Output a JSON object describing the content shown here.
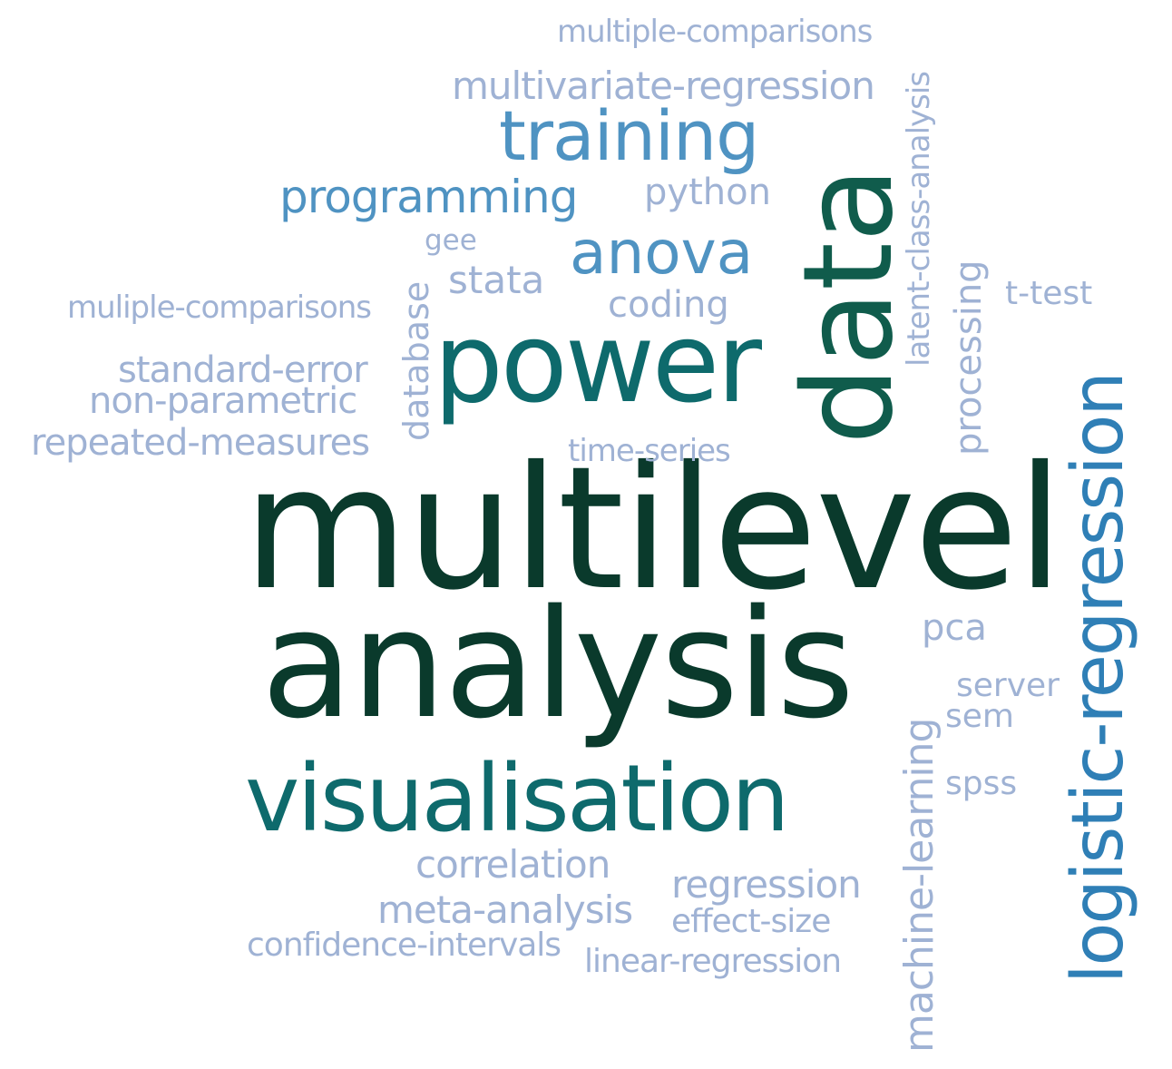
{
  "words": {
    "w1": "multilevel",
    "w2": "analysis",
    "w3": "data",
    "w4": "power",
    "w5": "visualisation",
    "w6": "logistic-regression",
    "w7": "training",
    "w8": "anova",
    "w9": "programming",
    "w10": "multiple-comparisons",
    "w11": "multivariate-regression",
    "w12": "python",
    "w13": "gee",
    "w14": "stata",
    "w15": "coding",
    "w16": "muliple-comparisons",
    "w17": "standard-error",
    "w18": "non-parametric",
    "w19": "repeated-measures",
    "w20": "database",
    "w21": "time-series",
    "w22": "latent-class-analysis",
    "w23": "processing",
    "w24": "t-test",
    "w25": "pca",
    "w26": "server",
    "w27": "sem",
    "w28": "spss",
    "w29": "machine-learning",
    "w30": "correlation",
    "w31": "regression",
    "w32": "meta-analysis",
    "w33": "effect-size",
    "w34": "confidence-intervals",
    "w35": "linear-regression"
  },
  "colors": {
    "lightest": "#9fb2d4",
    "light": "#4f93c2",
    "mid": "#2f7fb6",
    "teal": "#0e6a6c",
    "dark": "#105c4c",
    "darkest": "#0a3a2c"
  }
}
